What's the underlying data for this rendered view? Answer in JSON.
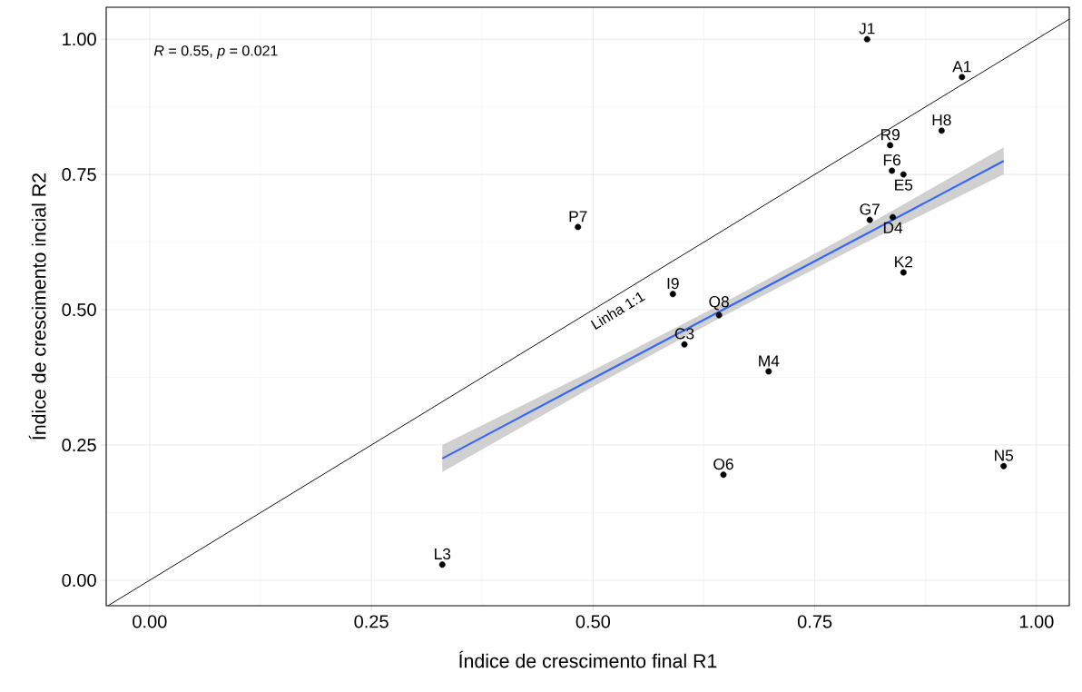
{
  "chart_data": {
    "type": "scatter",
    "xlabel": "Índice de crescimento final R1",
    "ylabel": "Índice de crescimento incial R2",
    "annotations": [
      "*R* = 0.55, *p* = 0.021",
      {
        "text": "Linha 1:1",
        "x": 0.52,
        "y": 0.52
      },
      {
        "text": "J1",
        "x": 0.809,
        "y": 1.0
      },
      {
        "text": "A1",
        "x": 0.916,
        "y": 0.93
      },
      {
        "text": "H8",
        "x": 0.893,
        "y": 0.831
      },
      {
        "text": "R9",
        "x": 0.835,
        "y": 0.804
      },
      {
        "text": "F6",
        "x": 0.837,
        "y": 0.757
      },
      {
        "text": "E5",
        "x": 0.85,
        "y": 0.75
      },
      {
        "text": "G7",
        "x": 0.812,
        "y": 0.666
      },
      {
        "text": "D4",
        "x": 0.838,
        "y": 0.671
      },
      {
        "text": "K2",
        "x": 0.85,
        "y": 0.569
      },
      {
        "text": "P7",
        "x": 0.483,
        "y": 0.653
      },
      {
        "text": "Q8",
        "x": 0.642,
        "y": 0.49
      },
      {
        "text": "I9",
        "x": 0.59,
        "y": 0.529
      },
      {
        "text": "C3",
        "x": 0.603,
        "y": 0.436
      },
      {
        "text": "M4",
        "x": 0.698,
        "y": 0.386
      },
      {
        "text": "O6",
        "x": 0.647,
        "y": 0.195
      },
      {
        "text": "N5",
        "x": 0.963,
        "y": 0.211
      },
      {
        "text": "L3",
        "x": 0.33,
        "y": 0.029
      }
    ],
    "series": [
      {
        "type": "line",
        "marker": "none",
        "color": "#3366ff",
        "x": [
          0.33,
          0.5,
          0.65,
          0.8,
          0.963
        ],
        "values": [
          0.225,
          0.373,
          0.503,
          0.633,
          0.775
        ],
        "lower": [
          0.2,
          0.358,
          0.491,
          0.618,
          0.75
        ],
        "upper": [
          0.25,
          0.388,
          0.515,
          0.648,
          0.8
        ]
      },
      {
        "type": "line",
        "marker": "none",
        "color": "#000000",
        "x": [
          -0.047,
          1.037
        ],
        "values": [
          -0.047,
          1.037
        ]
      },
      {
        "type": "scatter",
        "marker": "circle",
        "color": "#000000",
        "x": [
          0.809,
          0.916,
          0.893,
          0.835,
          0.837,
          0.85,
          0.812,
          0.838,
          0.85,
          0.483,
          0.642,
          0.59,
          0.603,
          0.698,
          0.647,
          0.963,
          0.33
        ],
        "values": [
          1.0,
          0.93,
          0.831,
          0.804,
          0.757,
          0.75,
          0.666,
          0.671,
          0.569,
          0.653,
          0.49,
          0.529,
          0.436,
          0.386,
          0.195,
          0.211,
          0.029
        ]
      }
    ],
    "xlim": [
      -0.049,
      1.037
    ],
    "ylim": [
      -0.047,
      1.059
    ],
    "xticks": [
      {
        "value": 0,
        "label": "0.00"
      },
      {
        "value": 0.25,
        "label": "0.25"
      },
      {
        "value": 0.5,
        "label": "0.50"
      },
      {
        "value": 0.75,
        "label": "0.75"
      },
      {
        "value": 1,
        "label": "1.00"
      }
    ],
    "yticks": [
      {
        "value": 0,
        "label": "0.00"
      },
      {
        "value": 0.25,
        "label": "0.25"
      },
      {
        "value": 0.5,
        "label": "0.50"
      },
      {
        "value": 0.75,
        "label": "0.75"
      },
      {
        "value": 1,
        "label": "1.00"
      }
    ],
    "grid": true
  }
}
